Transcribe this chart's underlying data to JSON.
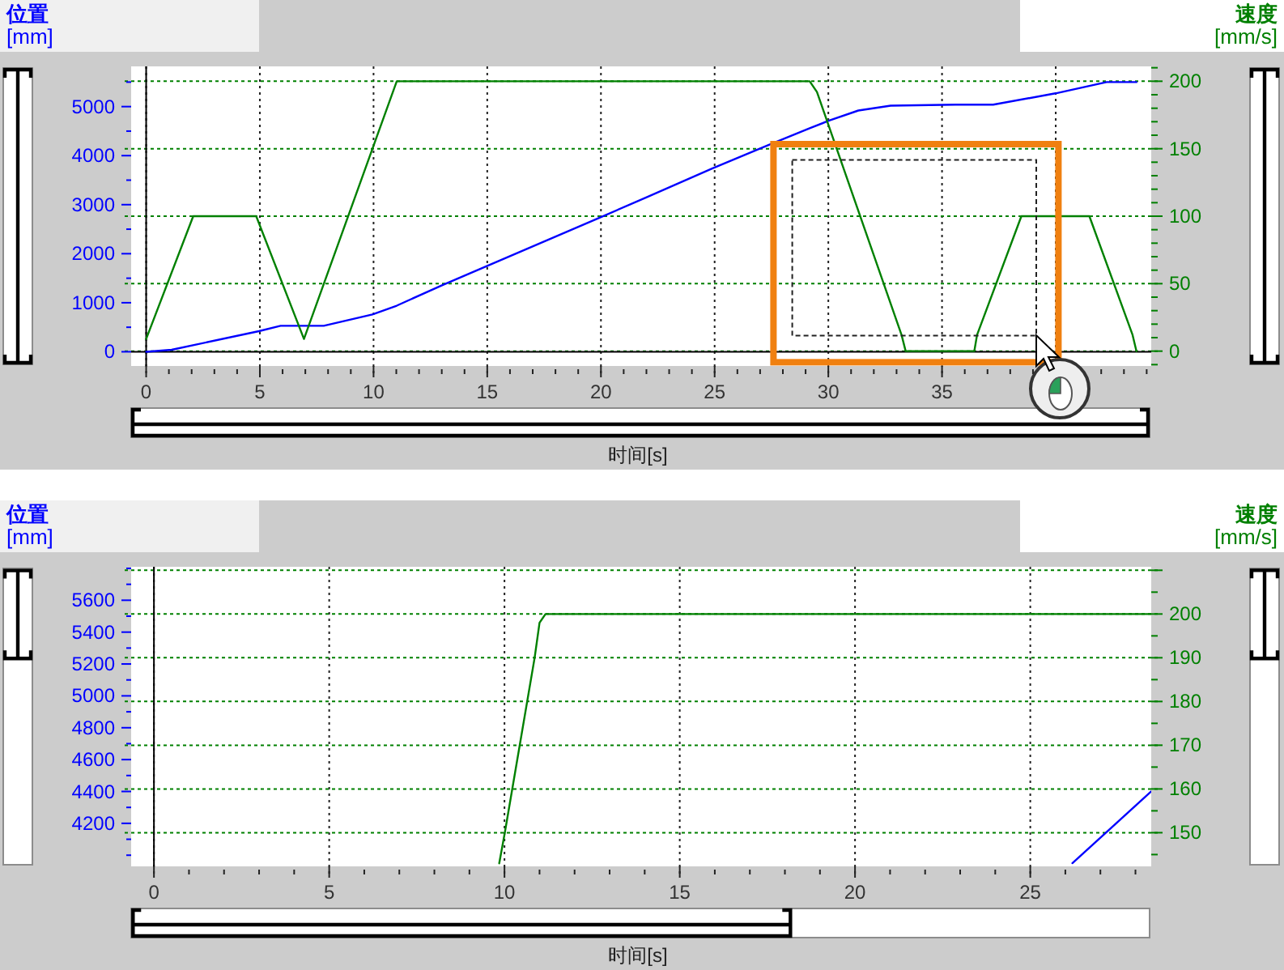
{
  "chart_data": [
    {
      "type": "line",
      "xlabel": "时间[s]",
      "ylabel": "**位置**\n[mm]",
      "y2label": "**速度**\n[mm/s]",
      "xlim": [
        -0.66,
        44.2
      ],
      "xticks": [
        0,
        5,
        10,
        15,
        20,
        25,
        30,
        35,
        {
          "value": 40,
          "label": null
        }
      ],
      "ylim": [
        -290,
        5820
      ],
      "yticks": [
        0,
        1000,
        2000,
        3000,
        4000,
        5000
      ],
      "y2lim": [
        -11,
        211
      ],
      "y2ticks": [
        0,
        50,
        100,
        150,
        200
      ],
      "grid": true,
      "series": [
        {
          "color": "#0000ff",
          "x": [
            0,
            1.12,
            4.96,
            5.91,
            7.81,
            9.95,
            11.02,
            13.03,
            19.92,
            22.05,
            24.91,
            27.28,
            29.18,
            30.01,
            31.32,
            32.74,
            35.59,
            37.25,
            39.99,
            42.24,
            43.55
          ],
          "values": [
            0,
            40,
            420,
            530,
            530,
            760,
            940,
            1360,
            2730,
            3160,
            3740,
            4200,
            4560,
            4710,
            4920,
            5020,
            5040,
            5040,
            5270,
            5500,
            5500
          ]
        },
        {
          "color": "#008000",
          "axis": "y2",
          "x": [
            0,
            2.07,
            4.84,
            6.94,
            11.02,
            29.18,
            29.5,
            33.22,
            33.4,
            36.42,
            36.54,
            38.49,
            41.48,
            43.38,
            43.55
          ],
          "values": [
            9,
            100,
            100,
            9,
            200,
            200,
            192,
            12,
            0,
            0,
            12,
            100,
            100,
            12,
            0
          ]
        }
      ]
    },
    {
      "type": "line",
      "xlabel": "时间[s]",
      "ylabel": "**位置**\n[mm]",
      "y2label": "**速度**\n[mm/s]",
      "xlim": [
        -0.65,
        28.45
      ],
      "xticks": [
        0,
        5,
        10,
        15,
        20,
        25
      ],
      "ylim": [
        3930,
        5810
      ],
      "yticks": [
        4200,
        4400,
        4600,
        4800,
        5000,
        5200,
        5400,
        5600
      ],
      "y2lim": [
        142.3,
        210.8
      ],
      "y2ticks": [
        150,
        160,
        170,
        180,
        190,
        200,
        {
          "value": 210,
          "label": null
        }
      ],
      "grid": true,
      "series": [
        {
          "color": "#0000ff",
          "x": [
            26.2,
            28.45
          ],
          "values": [
            3950,
            4400
          ]
        },
        {
          "color": "#008000",
          "axis": "y2",
          "x": [
            9.85,
            10.01,
            10.86,
            11.0,
            11.17,
            28.45
          ],
          "values": [
            143,
            150,
            190,
            198,
            200,
            200
          ]
        }
      ]
    }
  ]
}
